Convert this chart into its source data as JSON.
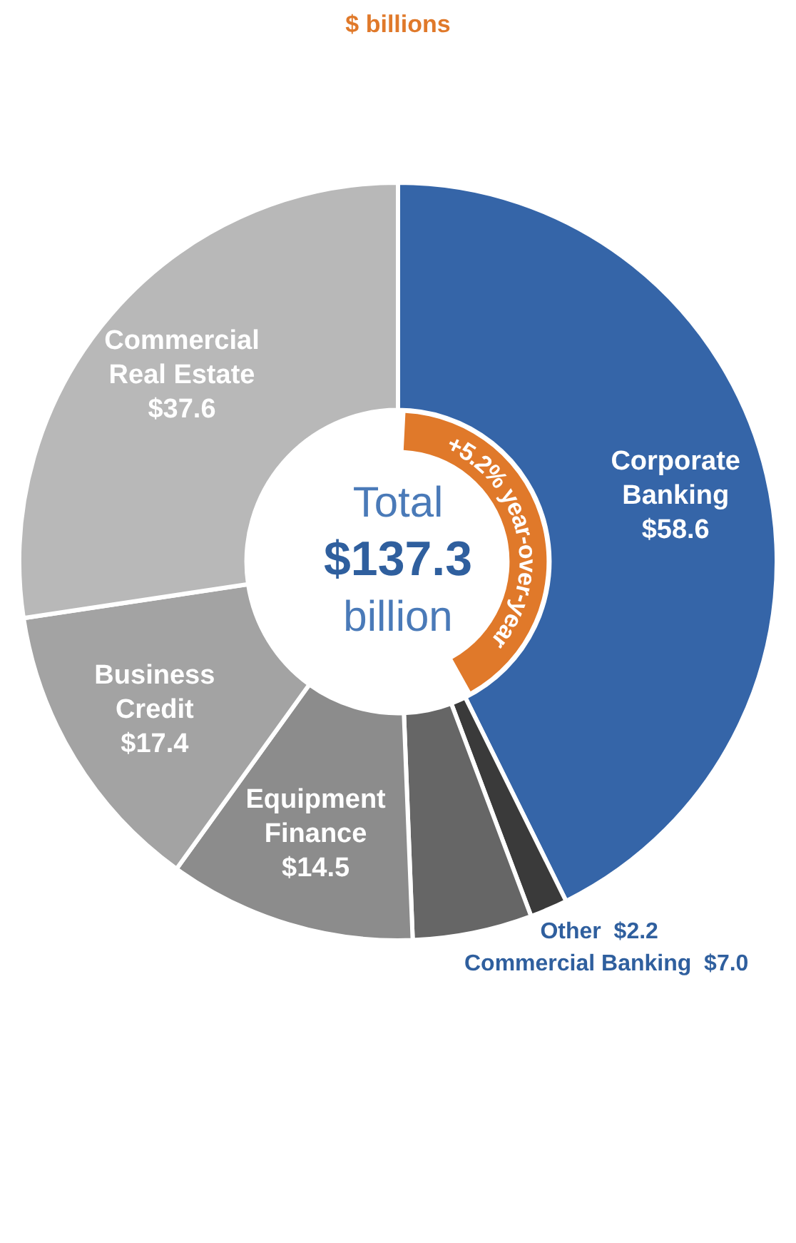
{
  "chart_data": {
    "type": "donut",
    "title": "$ billions",
    "categories": [
      "Corporate Banking",
      "Other",
      "Commercial Banking",
      "Equipment Finance",
      "Business Credit",
      "Commercial Real Estate"
    ],
    "values": [
      58.6,
      2.2,
      7.0,
      14.5,
      17.4,
      37.6
    ],
    "value_labels": [
      "$58.6",
      "$2.2",
      "$7.0",
      "$14.5",
      "$17.4",
      "$37.6"
    ],
    "colors": [
      "#3565a8",
      "#3a3a3a",
      "#666666",
      "#8c8c8c",
      "#a3a3a3",
      "#b8b8b8"
    ],
    "annotations": [
      "Total $137.3 billion",
      "+5.2% year-over-year"
    ],
    "legend": false
  }
}
